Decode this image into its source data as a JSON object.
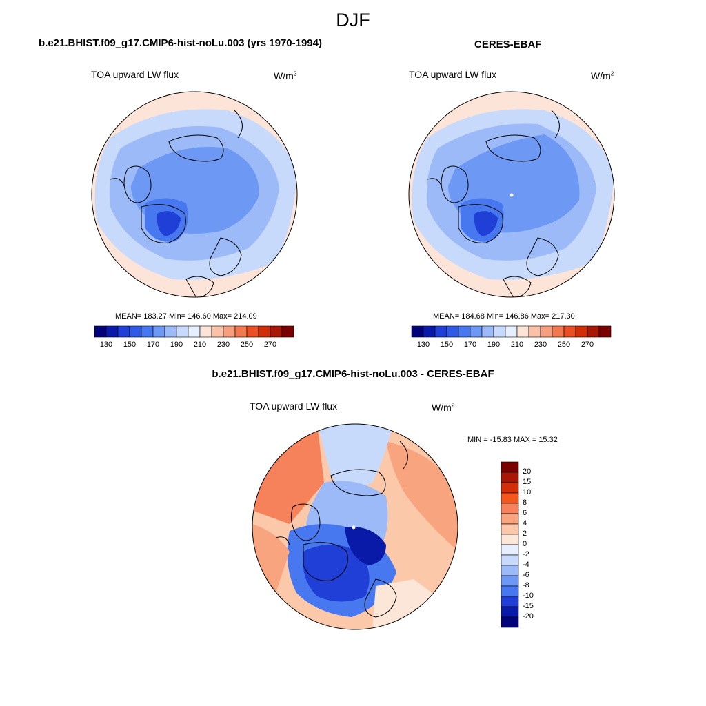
{
  "figure": {
    "title": "DJF",
    "bottom_title": "b.e21.BHIST.f09_g17.CMIP6-hist-noLu.003 - CERES-EBAF"
  },
  "panels": {
    "left": {
      "title": "b.e21.BHIST.f09_g17.CMIP6-hist-noLu.003 (yrs 1970-1994)",
      "variable": "TOA upward LW flux",
      "units_base": "W/m",
      "units_exp": "2",
      "stats": "MEAN= 183.27  Min= 146.60  Max= 214.09"
    },
    "right": {
      "title": "CERES-EBAF",
      "variable": "TOA upward LW flux",
      "units_base": "W/m",
      "units_exp": "2",
      "stats": "MEAN= 184.68  Min= 146.86  Max= 217.30"
    },
    "diff": {
      "variable": "TOA upward LW flux",
      "units_base": "W/m",
      "units_exp": "2",
      "stats": "MIN = -15.83 MAX =  15.32"
    }
  },
  "colorbar_abs": {
    "tick_labels": [
      "130",
      "150",
      "170",
      "190",
      "210",
      "230",
      "250",
      "270"
    ],
    "colors": [
      "#02027a",
      "#0a1aa8",
      "#1f3fd6",
      "#2f5ae6",
      "#4778ef",
      "#6d98f4",
      "#9cbaf7",
      "#c8dafb",
      "#e6effd",
      "#fce4d8",
      "#f9c2a8",
      "#f59f7e",
      "#f27850",
      "#e94e24",
      "#d12e0a",
      "#a81806",
      "#7a0000"
    ]
  },
  "colorbar_diff": {
    "tick_labels": [
      "20",
      "15",
      "10",
      "8",
      "6",
      "4",
      "2",
      "0",
      "-2",
      "-4",
      "-6",
      "-8",
      "-10",
      "-15",
      "-20"
    ],
    "colors_top_to_bottom": [
      "#7a0000",
      "#a81806",
      "#d12e0a",
      "#f5561c",
      "#f5825a",
      "#f8a47e",
      "#fbc8aa",
      "#fce6d8",
      "#e6effd",
      "#c8dafb",
      "#9cbaf7",
      "#6d98f4",
      "#4778ef",
      "#1f3fd6",
      "#0a1aa8",
      "#02027a"
    ]
  },
  "map_colors": {
    "ocean_warm": "#fce4d8",
    "light_blue": "#c8dafb",
    "mid_blue": "#9cbaf7",
    "blue": "#6d98f4",
    "deep_blue": "#4778ef",
    "darkest": "#1f3fd6"
  }
}
